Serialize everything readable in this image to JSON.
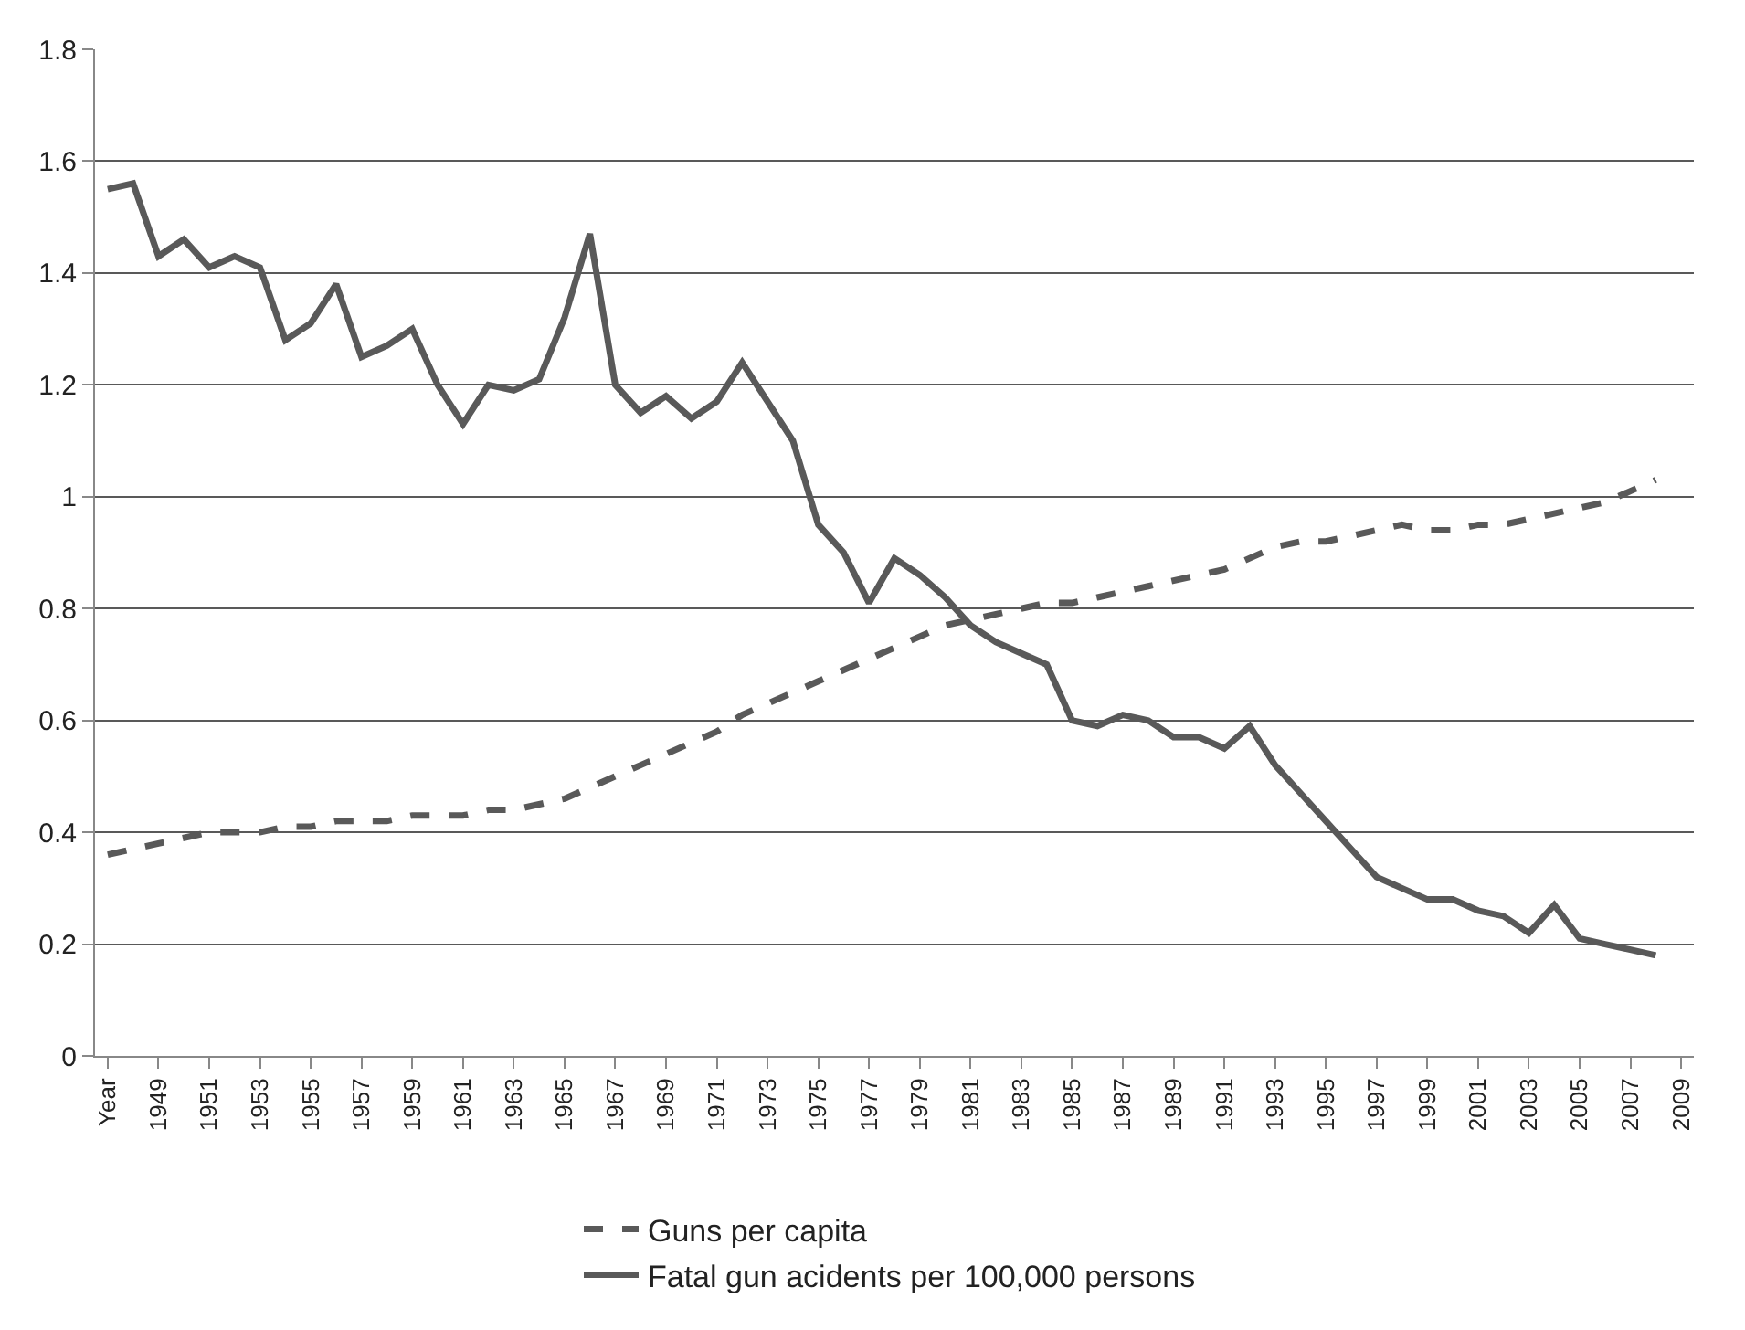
{
  "chart_data": {
    "type": "line",
    "categories": [
      "Year",
      null,
      "1949",
      null,
      "1951",
      null,
      "1953",
      null,
      "1955",
      null,
      "1957",
      null,
      "1959",
      null,
      "1961",
      null,
      "1963",
      null,
      "1965",
      null,
      "1967",
      null,
      "1969",
      null,
      "1971",
      null,
      "1973",
      null,
      "1975",
      null,
      "1977",
      null,
      "1979",
      null,
      "1981",
      null,
      "1983",
      null,
      "1985",
      null,
      "1987",
      null,
      "1989",
      null,
      "1991",
      null,
      "1993",
      null,
      "1995",
      null,
      "1997",
      null,
      "1999",
      null,
      "2001",
      null,
      "2003",
      null,
      "2005",
      null,
      "2007",
      null,
      "2009"
    ],
    "series": [
      {
        "name": "Guns per capita",
        "color": "#595959",
        "line_style": "dashed",
        "values": [
          0.36,
          0.37,
          0.38,
          0.39,
          0.4,
          0.4,
          0.4,
          0.41,
          0.41,
          0.42,
          0.42,
          0.42,
          0.43,
          0.43,
          0.43,
          0.44,
          0.44,
          0.45,
          0.46,
          0.48,
          0.5,
          0.52,
          0.54,
          0.56,
          0.58,
          0.61,
          0.63,
          0.65,
          0.67,
          0.69,
          0.71,
          0.73,
          0.75,
          0.77,
          0.78,
          0.79,
          0.8,
          0.81,
          0.81,
          0.82,
          0.83,
          0.84,
          0.85,
          0.86,
          0.87,
          0.89,
          0.91,
          0.92,
          0.92,
          0.93,
          0.94,
          0.95,
          0.94,
          0.94,
          0.95,
          0.95,
          0.96,
          0.97,
          0.98,
          0.99,
          1.01,
          1.03,
          null
        ]
      },
      {
        "name": "Fatal gun acidents per 100,000 persons",
        "color": "#595959",
        "line_style": "solid",
        "values": [
          1.55,
          1.56,
          1.43,
          1.46,
          1.41,
          1.43,
          1.41,
          1.28,
          1.31,
          1.38,
          1.25,
          1.27,
          1.3,
          1.2,
          1.13,
          1.2,
          1.19,
          1.21,
          1.32,
          1.47,
          1.2,
          1.15,
          1.18,
          1.14,
          1.17,
          1.24,
          1.17,
          1.1,
          0.95,
          0.9,
          0.81,
          0.89,
          0.86,
          0.82,
          0.77,
          0.74,
          0.72,
          0.7,
          0.6,
          0.59,
          0.61,
          0.6,
          0.57,
          0.57,
          0.55,
          0.59,
          0.52,
          0.47,
          0.42,
          0.37,
          0.32,
          0.3,
          0.28,
          0.28,
          0.26,
          0.25,
          0.22,
          0.27,
          0.21,
          0.2,
          0.19,
          0.18,
          null
        ]
      }
    ],
    "ylim": [
      0,
      1.8
    ],
    "yticks": [
      0,
      0.2,
      0.4,
      0.6,
      0.8,
      1,
      1.2,
      1.4,
      1.6,
      1.8
    ],
    "grid": "y",
    "legend": "bottom",
    "marker": "none"
  }
}
